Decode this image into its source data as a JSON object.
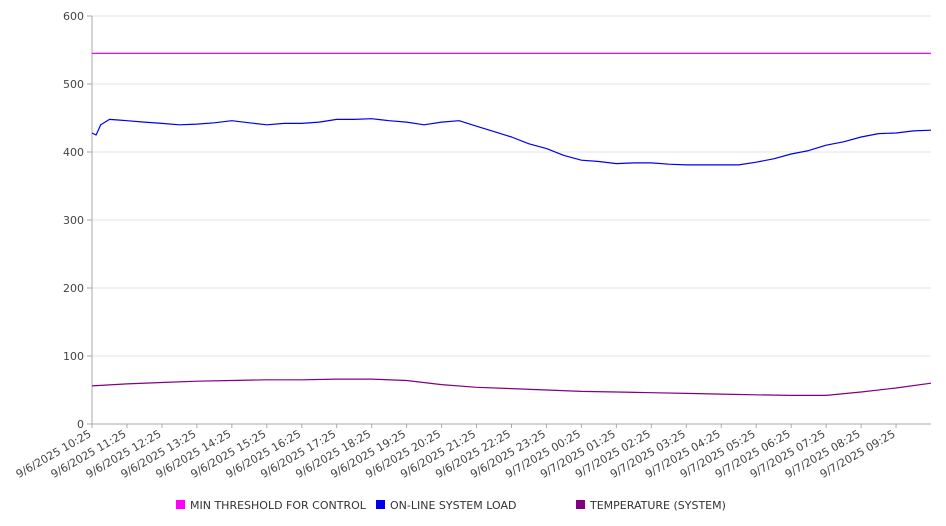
{
  "chart_data": {
    "type": "line",
    "title": "",
    "xlabel": "",
    "ylabel": "",
    "ylim": [
      0,
      600
    ],
    "yticks": [
      0,
      100,
      200,
      300,
      400,
      500,
      600
    ],
    "grid": true,
    "legend_position": "bottom",
    "x_range": [
      "9/6/2025 10:25",
      "9/7/2025 10:25"
    ],
    "x_tick_labels": [
      "9/6/2025 10:25",
      "9/6/2025 11:25",
      "9/6/2025 12:25",
      "9/6/2025 13:25",
      "9/6/2025 14:25",
      "9/6/2025 15:25",
      "9/6/2025 16:25",
      "9/6/2025 17:25",
      "9/6/2025 18:25",
      "9/6/2025 19:25",
      "9/6/2025 20:25",
      "9/6/2025 21:25",
      "9/6/2025 22:25",
      "9/6/2025 23:25",
      "9/7/2025 00:25",
      "9/7/2025 01:25",
      "9/7/2025 02:25",
      "9/7/2025 03:25",
      "9/7/2025 04:25",
      "9/7/2025 05:25",
      "9/7/2025 06:25",
      "9/7/2025 07:25",
      "9/7/2025 08:25",
      "9/7/2025 09:25"
    ],
    "series": [
      {
        "name": "MIN THRESHOLD FOR CONTROL",
        "color": "#ff00ff",
        "x": [
          "9/6/2025 10:25",
          "9/7/2025 10:25"
        ],
        "values": [
          545,
          545
        ]
      },
      {
        "name": "ON-LINE SYSTEM LOAD",
        "color": "#0000ee",
        "x": [
          "9/6/2025 10:25",
          "9/6/2025 10:32",
          "9/6/2025 10:40",
          "9/6/2025 10:55",
          "9/6/2025 11:10",
          "9/6/2025 11:25",
          "9/6/2025 11:55",
          "9/6/2025 12:25",
          "9/6/2025 12:55",
          "9/6/2025 13:25",
          "9/6/2025 13:55",
          "9/6/2025 14:25",
          "9/6/2025 14:55",
          "9/6/2025 15:25",
          "9/6/2025 15:55",
          "9/6/2025 16:25",
          "9/6/2025 16:55",
          "9/6/2025 17:25",
          "9/6/2025 17:55",
          "9/6/2025 18:25",
          "9/6/2025 18:55",
          "9/6/2025 19:25",
          "9/6/2025 19:55",
          "9/6/2025 20:25",
          "9/6/2025 20:55",
          "9/6/2025 21:25",
          "9/6/2025 21:55",
          "9/6/2025 22:25",
          "9/6/2025 22:55",
          "9/6/2025 23:25",
          "9/6/2025 23:55",
          "9/7/2025 00:25",
          "9/7/2025 00:55",
          "9/7/2025 01:25",
          "9/7/2025 01:55",
          "9/7/2025 02:25",
          "9/7/2025 02:55",
          "9/7/2025 03:25",
          "9/7/2025 03:55",
          "9/7/2025 04:25",
          "9/7/2025 04:55",
          "9/7/2025 05:25",
          "9/7/2025 05:55",
          "9/7/2025 06:25",
          "9/7/2025 06:55",
          "9/7/2025 07:25",
          "9/7/2025 07:55",
          "9/7/2025 08:25",
          "9/7/2025 08:55",
          "9/7/2025 09:25",
          "9/7/2025 09:55",
          "9/7/2025 10:25"
        ],
        "values": [
          428,
          425,
          440,
          448,
          447,
          446,
          444,
          442,
          440,
          441,
          443,
          446,
          443,
          440,
          442,
          442,
          444,
          448,
          448,
          449,
          446,
          444,
          440,
          444,
          446,
          438,
          430,
          422,
          412,
          405,
          395,
          388,
          386,
          383,
          384,
          384,
          382,
          381,
          381,
          381,
          381,
          385,
          390,
          397,
          402,
          410,
          415,
          422,
          427,
          428,
          431,
          432
        ]
      },
      {
        "name": "TEMPERATURE (SYSTEM)",
        "color": "#800080",
        "x": [
          "9/6/2025 10:25",
          "9/6/2025 11:25",
          "9/6/2025 12:25",
          "9/6/2025 13:25",
          "9/6/2025 14:25",
          "9/6/2025 15:25",
          "9/6/2025 16:25",
          "9/6/2025 17:25",
          "9/6/2025 18:25",
          "9/6/2025 19:25",
          "9/6/2025 20:25",
          "9/6/2025 21:25",
          "9/6/2025 22:25",
          "9/6/2025 23:25",
          "9/7/2025 00:25",
          "9/7/2025 01:25",
          "9/7/2025 02:25",
          "9/7/2025 03:25",
          "9/7/2025 04:25",
          "9/7/2025 05:25",
          "9/7/2025 06:25",
          "9/7/2025 07:25",
          "9/7/2025 08:25",
          "9/7/2025 09:25",
          "9/7/2025 10:25"
        ],
        "values": [
          56,
          59,
          61,
          63,
          64,
          65,
          65,
          66,
          66,
          64,
          58,
          54,
          52,
          50,
          48,
          47,
          46,
          45,
          44,
          43,
          42,
          42,
          47,
          53,
          60
        ]
      }
    ]
  }
}
